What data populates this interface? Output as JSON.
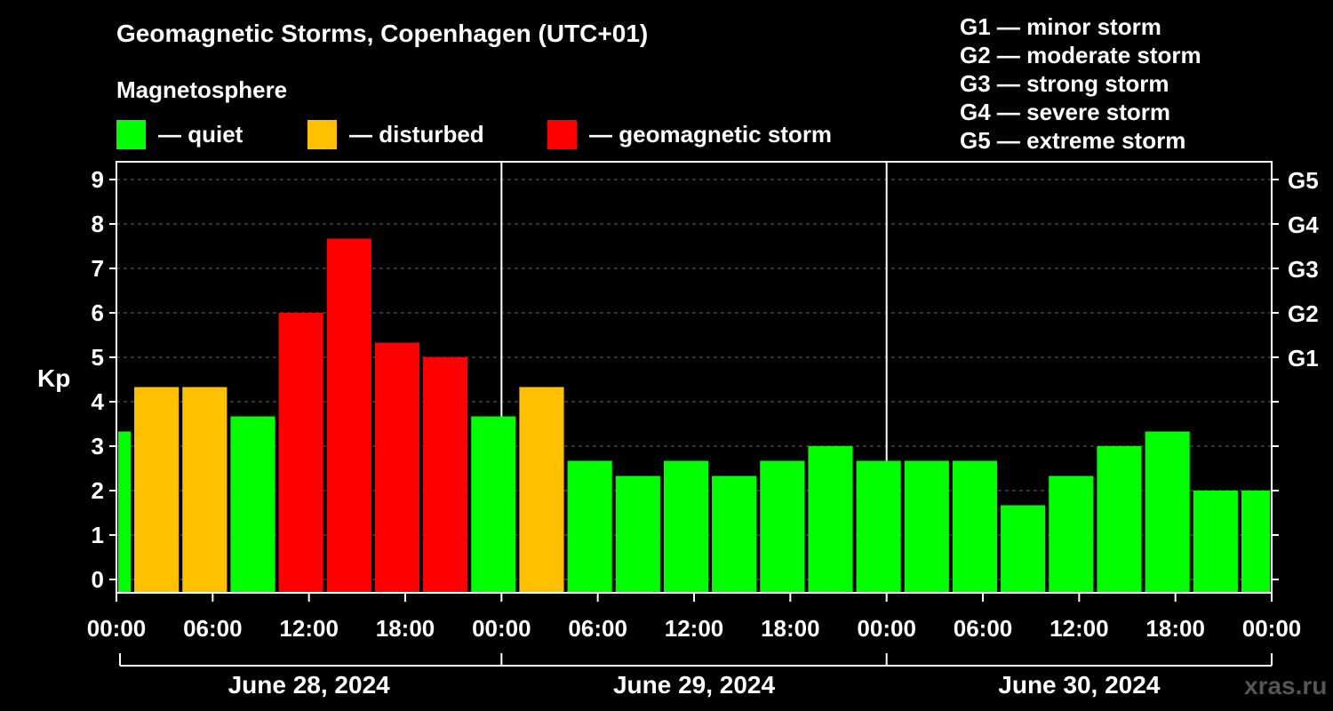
{
  "header": {
    "title": "Geomagnetic Storms, Copenhagen (UTC+01)",
    "subtitle": "Magnetosphere"
  },
  "legend": [
    {
      "label": "— quiet",
      "color": "#00ff00"
    },
    {
      "label": "— disturbed",
      "color": "#ffc000"
    },
    {
      "label": "— geomagnetic storm",
      "color": "#ff0000"
    }
  ],
  "g_scale": [
    "G1 — minor storm",
    "G2 — moderate storm",
    "G3 — strong storm",
    "G4 — severe storm",
    "G5 — extreme storm"
  ],
  "watermark": "xras.ru",
  "chart_data": {
    "type": "bar",
    "ylabel": "Kp",
    "ylim": [
      0,
      9
    ],
    "yticks": [
      "0",
      "1",
      "2",
      "3",
      "4",
      "5",
      "6",
      "7",
      "8",
      "9"
    ],
    "right_ticks": [
      {
        "value": 5,
        "label": "G1"
      },
      {
        "value": 6,
        "label": "G2"
      },
      {
        "value": 7,
        "label": "G3"
      },
      {
        "value": 8,
        "label": "G4"
      },
      {
        "value": 9,
        "label": "G5"
      }
    ],
    "xtick_labels": [
      "00:00",
      "06:00",
      "12:00",
      "18:00",
      "00:00",
      "06:00",
      "12:00",
      "18:00",
      "00:00",
      "06:00",
      "12:00",
      "18:00",
      "00:00"
    ],
    "days": [
      "June 28, 2024",
      "June 29, 2024",
      "June 30, 2024"
    ],
    "colors": {
      "quiet": "#00ff00",
      "disturbed": "#ffc000",
      "storm": "#ff0000"
    },
    "bars": [
      {
        "start_hour": 0,
        "end_hour": 1,
        "kp": 3.33,
        "level": "quiet"
      },
      {
        "start_hour": 1,
        "end_hour": 4,
        "kp": 4.33,
        "level": "disturbed"
      },
      {
        "start_hour": 4,
        "end_hour": 7,
        "kp": 4.33,
        "level": "disturbed"
      },
      {
        "start_hour": 7,
        "end_hour": 10,
        "kp": 3.67,
        "level": "quiet"
      },
      {
        "start_hour": 10,
        "end_hour": 13,
        "kp": 6.0,
        "level": "storm"
      },
      {
        "start_hour": 13,
        "end_hour": 16,
        "kp": 7.67,
        "level": "storm"
      },
      {
        "start_hour": 16,
        "end_hour": 19,
        "kp": 5.33,
        "level": "storm"
      },
      {
        "start_hour": 19,
        "end_hour": 22,
        "kp": 5.0,
        "level": "storm"
      },
      {
        "start_hour": 22,
        "end_hour": 25,
        "kp": 3.67,
        "level": "quiet"
      },
      {
        "start_hour": 25,
        "end_hour": 28,
        "kp": 4.33,
        "level": "disturbed"
      },
      {
        "start_hour": 28,
        "end_hour": 31,
        "kp": 2.67,
        "level": "quiet"
      },
      {
        "start_hour": 31,
        "end_hour": 34,
        "kp": 2.33,
        "level": "quiet"
      },
      {
        "start_hour": 34,
        "end_hour": 37,
        "kp": 2.67,
        "level": "quiet"
      },
      {
        "start_hour": 37,
        "end_hour": 40,
        "kp": 2.33,
        "level": "quiet"
      },
      {
        "start_hour": 40,
        "end_hour": 43,
        "kp": 2.67,
        "level": "quiet"
      },
      {
        "start_hour": 43,
        "end_hour": 46,
        "kp": 3.0,
        "level": "quiet"
      },
      {
        "start_hour": 46,
        "end_hour": 49,
        "kp": 2.67,
        "level": "quiet"
      },
      {
        "start_hour": 49,
        "end_hour": 52,
        "kp": 2.67,
        "level": "quiet"
      },
      {
        "start_hour": 52,
        "end_hour": 55,
        "kp": 2.67,
        "level": "quiet"
      },
      {
        "start_hour": 55,
        "end_hour": 58,
        "kp": 1.67,
        "level": "quiet"
      },
      {
        "start_hour": 58,
        "end_hour": 61,
        "kp": 2.33,
        "level": "quiet"
      },
      {
        "start_hour": 61,
        "end_hour": 64,
        "kp": 3.0,
        "level": "quiet"
      },
      {
        "start_hour": 64,
        "end_hour": 67,
        "kp": 3.33,
        "level": "quiet"
      },
      {
        "start_hour": 67,
        "end_hour": 70,
        "kp": 2.0,
        "level": "quiet"
      },
      {
        "start_hour": 70,
        "end_hour": 72,
        "kp": 2.0,
        "level": "quiet"
      }
    ]
  }
}
